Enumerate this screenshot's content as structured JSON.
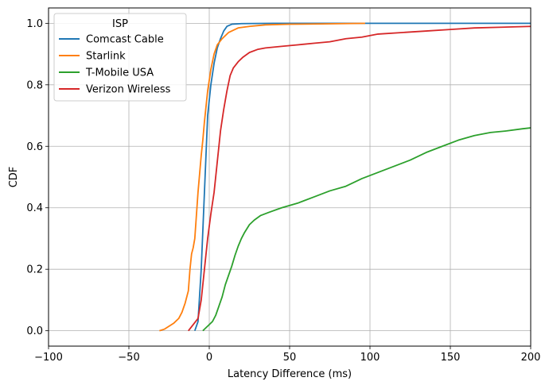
{
  "chart_data": {
    "type": "line",
    "xlabel": "Latency Difference (ms)",
    "ylabel": "CDF",
    "xlim": [
      -100,
      200
    ],
    "ylim": [
      -0.05,
      1.05
    ],
    "x_ticks": [
      -100,
      -50,
      0,
      50,
      100,
      150,
      200
    ],
    "x_tick_labels": [
      "−100",
      "−50",
      "0",
      "50",
      "100",
      "150",
      "200"
    ],
    "y_ticks": [
      0.0,
      0.2,
      0.4,
      0.6,
      0.8,
      1.0
    ],
    "y_tick_labels": [
      "0.0",
      "0.2",
      "0.4",
      "0.6",
      "0.8",
      "1.0"
    ],
    "grid": true,
    "legend": {
      "title": "ISP",
      "placement": "upper-left"
    },
    "series": [
      {
        "name": "Comcast Cable",
        "color": "#1f77b4",
        "points": [
          [
            -9,
            0.0
          ],
          [
            -7,
            0.03
          ],
          [
            -5,
            0.2
          ],
          [
            -3,
            0.45
          ],
          [
            -1,
            0.7
          ],
          [
            1,
            0.8
          ],
          [
            3,
            0.87
          ],
          [
            5,
            0.92
          ],
          [
            7,
            0.95
          ],
          [
            9,
            0.975
          ],
          [
            11,
            0.99
          ],
          [
            14,
            0.997
          ],
          [
            20,
            0.999
          ],
          [
            40,
            1.0
          ],
          [
            200,
            1.0
          ]
        ]
      },
      {
        "name": "Starlink",
        "color": "#ff7f0e",
        "points": [
          [
            -31,
            0.0
          ],
          [
            -28,
            0.005
          ],
          [
            -25,
            0.015
          ],
          [
            -22,
            0.025
          ],
          [
            -19,
            0.04
          ],
          [
            -17,
            0.06
          ],
          [
            -15,
            0.09
          ],
          [
            -13,
            0.13
          ],
          [
            -12,
            0.2
          ],
          [
            -11,
            0.25
          ],
          [
            -10,
            0.27
          ],
          [
            -9,
            0.3
          ],
          [
            -7,
            0.45
          ],
          [
            -5,
            0.57
          ],
          [
            -4,
            0.62
          ],
          [
            -3,
            0.68
          ],
          [
            -1,
            0.78
          ],
          [
            1,
            0.85
          ],
          [
            3,
            0.9
          ],
          [
            5,
            0.93
          ],
          [
            8,
            0.95
          ],
          [
            12,
            0.97
          ],
          [
            18,
            0.985
          ],
          [
            25,
            0.99
          ],
          [
            35,
            0.995
          ],
          [
            50,
            0.997
          ],
          [
            70,
            0.998
          ],
          [
            97,
            1.0
          ]
        ]
      },
      {
        "name": "T-Mobile USA",
        "color": "#2ca02c",
        "points": [
          [
            -4,
            0.0
          ],
          [
            -2,
            0.01
          ],
          [
            0,
            0.02
          ],
          [
            2,
            0.03
          ],
          [
            4,
            0.05
          ],
          [
            6,
            0.08
          ],
          [
            8,
            0.11
          ],
          [
            10,
            0.15
          ],
          [
            12,
            0.18
          ],
          [
            14,
            0.21
          ],
          [
            16,
            0.245
          ],
          [
            18,
            0.275
          ],
          [
            20,
            0.3
          ],
          [
            22,
            0.32
          ],
          [
            25,
            0.345
          ],
          [
            28,
            0.36
          ],
          [
            32,
            0.375
          ],
          [
            37,
            0.385
          ],
          [
            45,
            0.4
          ],
          [
            55,
            0.415
          ],
          [
            65,
            0.435
          ],
          [
            75,
            0.455
          ],
          [
            85,
            0.47
          ],
          [
            95,
            0.495
          ],
          [
            105,
            0.515
          ],
          [
            115,
            0.535
          ],
          [
            125,
            0.555
          ],
          [
            135,
            0.58
          ],
          [
            145,
            0.6
          ],
          [
            155,
            0.62
          ],
          [
            165,
            0.635
          ],
          [
            175,
            0.645
          ],
          [
            185,
            0.65
          ],
          [
            195,
            0.657
          ],
          [
            200,
            0.66
          ]
        ]
      },
      {
        "name": "Verizon Wireless",
        "color": "#d62728",
        "points": [
          [
            -13,
            0.0
          ],
          [
            -10,
            0.02
          ],
          [
            -7,
            0.04
          ],
          [
            -5,
            0.1
          ],
          [
            -3,
            0.2
          ],
          [
            -1,
            0.3
          ],
          [
            1,
            0.38
          ],
          [
            3,
            0.45
          ],
          [
            5,
            0.55
          ],
          [
            7,
            0.65
          ],
          [
            9,
            0.72
          ],
          [
            11,
            0.78
          ],
          [
            13,
            0.83
          ],
          [
            15,
            0.855
          ],
          [
            18,
            0.875
          ],
          [
            21,
            0.89
          ],
          [
            25,
            0.905
          ],
          [
            30,
            0.915
          ],
          [
            35,
            0.92
          ],
          [
            45,
            0.925
          ],
          [
            55,
            0.93
          ],
          [
            65,
            0.935
          ],
          [
            75,
            0.94
          ],
          [
            85,
            0.95
          ],
          [
            95,
            0.955
          ],
          [
            105,
            0.965
          ],
          [
            120,
            0.97
          ],
          [
            135,
            0.975
          ],
          [
            150,
            0.98
          ],
          [
            165,
            0.985
          ],
          [
            180,
            0.987
          ],
          [
            200,
            0.99
          ]
        ]
      }
    ]
  }
}
